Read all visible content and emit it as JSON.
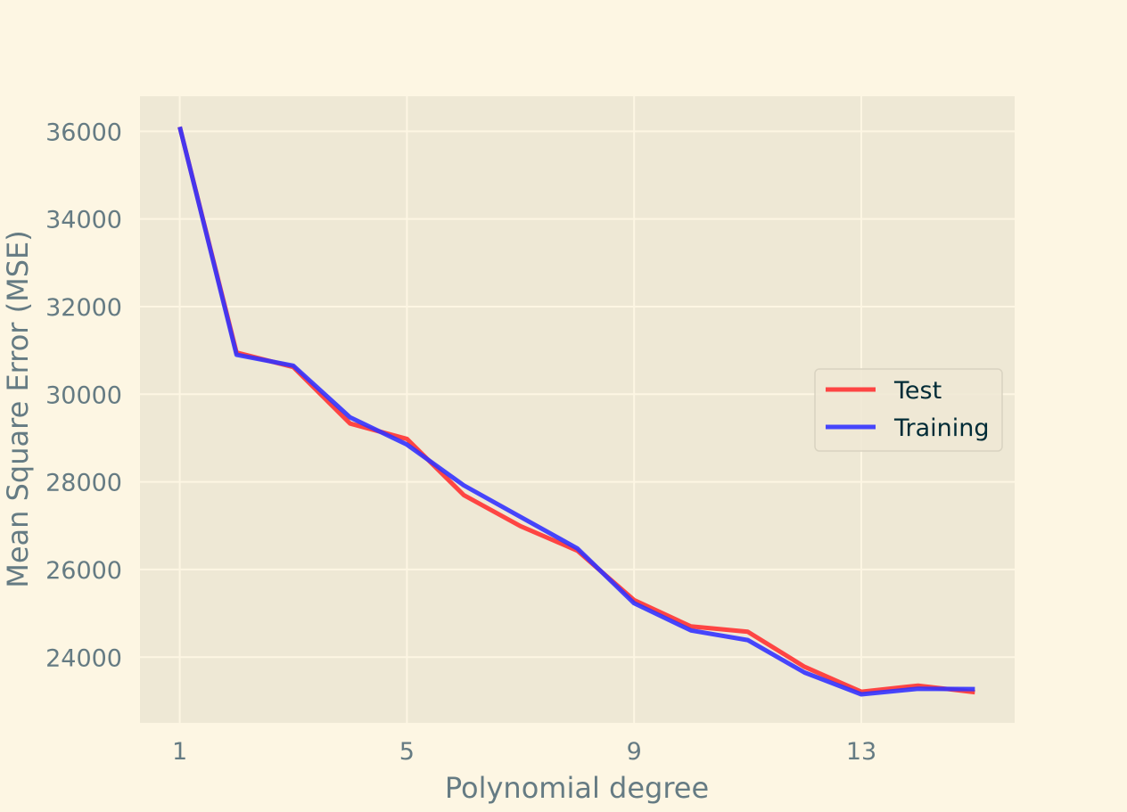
{
  "colors": {
    "page_background": "#fdf6e3",
    "plot_background": "#eee8d5",
    "grid": "#fdf6e3",
    "axis_text": "#657b83",
    "legend_text": "#002b36",
    "test_line": "#ff3333",
    "training_line": "#3333ff"
  },
  "chart_data": {
    "type": "line",
    "title": "",
    "xlabel": "Polynomial degree",
    "ylabel": "Mean Square Error (MSE)",
    "xlim": [
      0.3,
      15.7
    ],
    "ylim": [
      22500,
      36800
    ],
    "xticks": [
      1,
      5,
      9,
      13
    ],
    "yticks": [
      24000,
      26000,
      28000,
      30000,
      32000,
      34000,
      36000
    ],
    "grid": true,
    "legend_position": "center-right",
    "x": [
      1,
      2,
      3,
      4,
      5,
      6,
      7,
      8,
      9,
      10,
      11,
      12,
      13,
      14,
      15
    ],
    "series": [
      {
        "name": "Test",
        "color": "#ff3333",
        "values": [
          36100,
          30950,
          30620,
          29330,
          28980,
          27700,
          26990,
          26430,
          25300,
          24700,
          24580,
          23780,
          23210,
          23350,
          23200
        ]
      },
      {
        "name": "Training",
        "color": "#3333ff",
        "values": [
          36100,
          30900,
          30650,
          29470,
          28850,
          27920,
          27200,
          26480,
          25230,
          24610,
          24390,
          23650,
          23150,
          23280,
          23270
        ]
      }
    ]
  }
}
